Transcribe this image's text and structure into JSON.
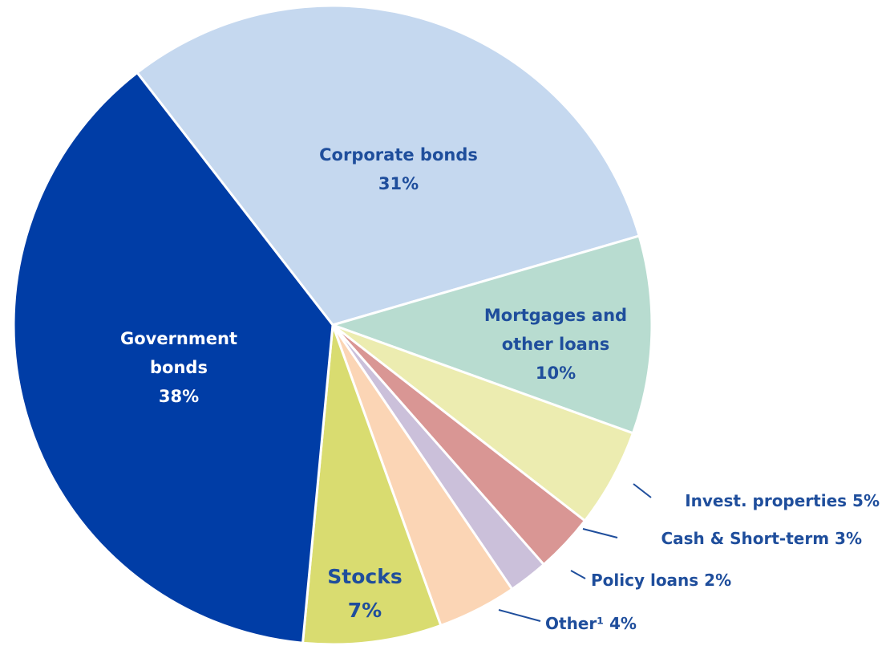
{
  "chart_data": {
    "type": "pie",
    "categories": [
      "Corporate bonds",
      "Mortgages and other loans",
      "Invest. properties",
      "Cash & Short-term",
      "Policy loans",
      "Other¹",
      "Stocks",
      "Government bonds"
    ],
    "values": [
      31,
      10,
      5,
      3,
      2,
      4,
      7,
      38
    ],
    "value_labels": [
      "31%",
      "10%",
      "5%",
      "3%",
      "2%",
      "4%",
      "7%",
      "38%"
    ],
    "colors": [
      "#c5d8ef",
      "#b8dcd0",
      "#ececb0",
      "#d99694",
      "#cbc0da",
      "#fbd5b5",
      "#d9dc70",
      "#003da6"
    ]
  }
}
